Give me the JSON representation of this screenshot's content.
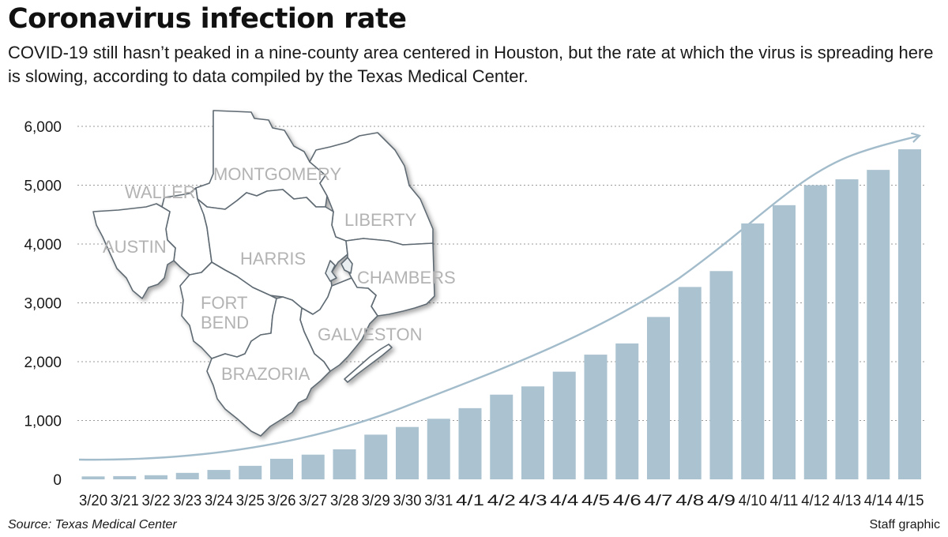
{
  "header": {
    "title": "Coronavirus infection rate",
    "subtitle": "COVID-19 still hasn’t peaked in a nine-county area centered in Houston, but the rate at which the virus is spreading here is slowing, according to data compiled by the Texas Medical Center."
  },
  "footer": {
    "source": "Source: Texas Medical Center",
    "credit": "Staff graphic"
  },
  "map": {
    "counties": [
      "MONTGOMERY",
      "WALLER",
      "LIBERTY",
      "AUSTIN",
      "HARRIS",
      "CHAMBERS",
      "FORT",
      "BEND",
      "GALVESTON",
      "BRAZORIA"
    ]
  },
  "colors": {
    "bar": "#abc3d0",
    "trend": "#a3bccb",
    "grid": "#9a9a9a",
    "map_fill": "#ffffff",
    "map_stroke": "#5f6b73"
  },
  "chart_data": {
    "type": "bar",
    "categories": [
      "3/20",
      "3/21",
      "3/22",
      "3/23",
      "3/24",
      "3/25",
      "3/26",
      "3/27",
      "3/28",
      "3/29",
      "3/30",
      "3/31",
      "4/1",
      "4/2",
      "4/3",
      "4/4",
      "4/5",
      "4/6",
      "4/7",
      "4/8",
      "4/9",
      "4/10",
      "4/11",
      "4/12",
      "4/13",
      "4/14",
      "4/15"
    ],
    "values": [
      50,
      55,
      70,
      110,
      160,
      230,
      350,
      420,
      510,
      760,
      890,
      1030,
      1210,
      1440,
      1580,
      1830,
      2120,
      2310,
      2760,
      3270,
      3540,
      4350,
      4660,
      5000,
      5100,
      5260,
      5610
    ],
    "ylim": [
      0,
      6000
    ],
    "yticks": [
      0,
      1000,
      2000,
      3000,
      4000,
      5000,
      6000
    ],
    "ytick_labels": [
      "0",
      "1,000",
      "2,000",
      "3,000",
      "4,000",
      "5,000",
      "6,000"
    ],
    "grid": true,
    "trend_line": true,
    "xlabel": "",
    "ylabel": ""
  }
}
